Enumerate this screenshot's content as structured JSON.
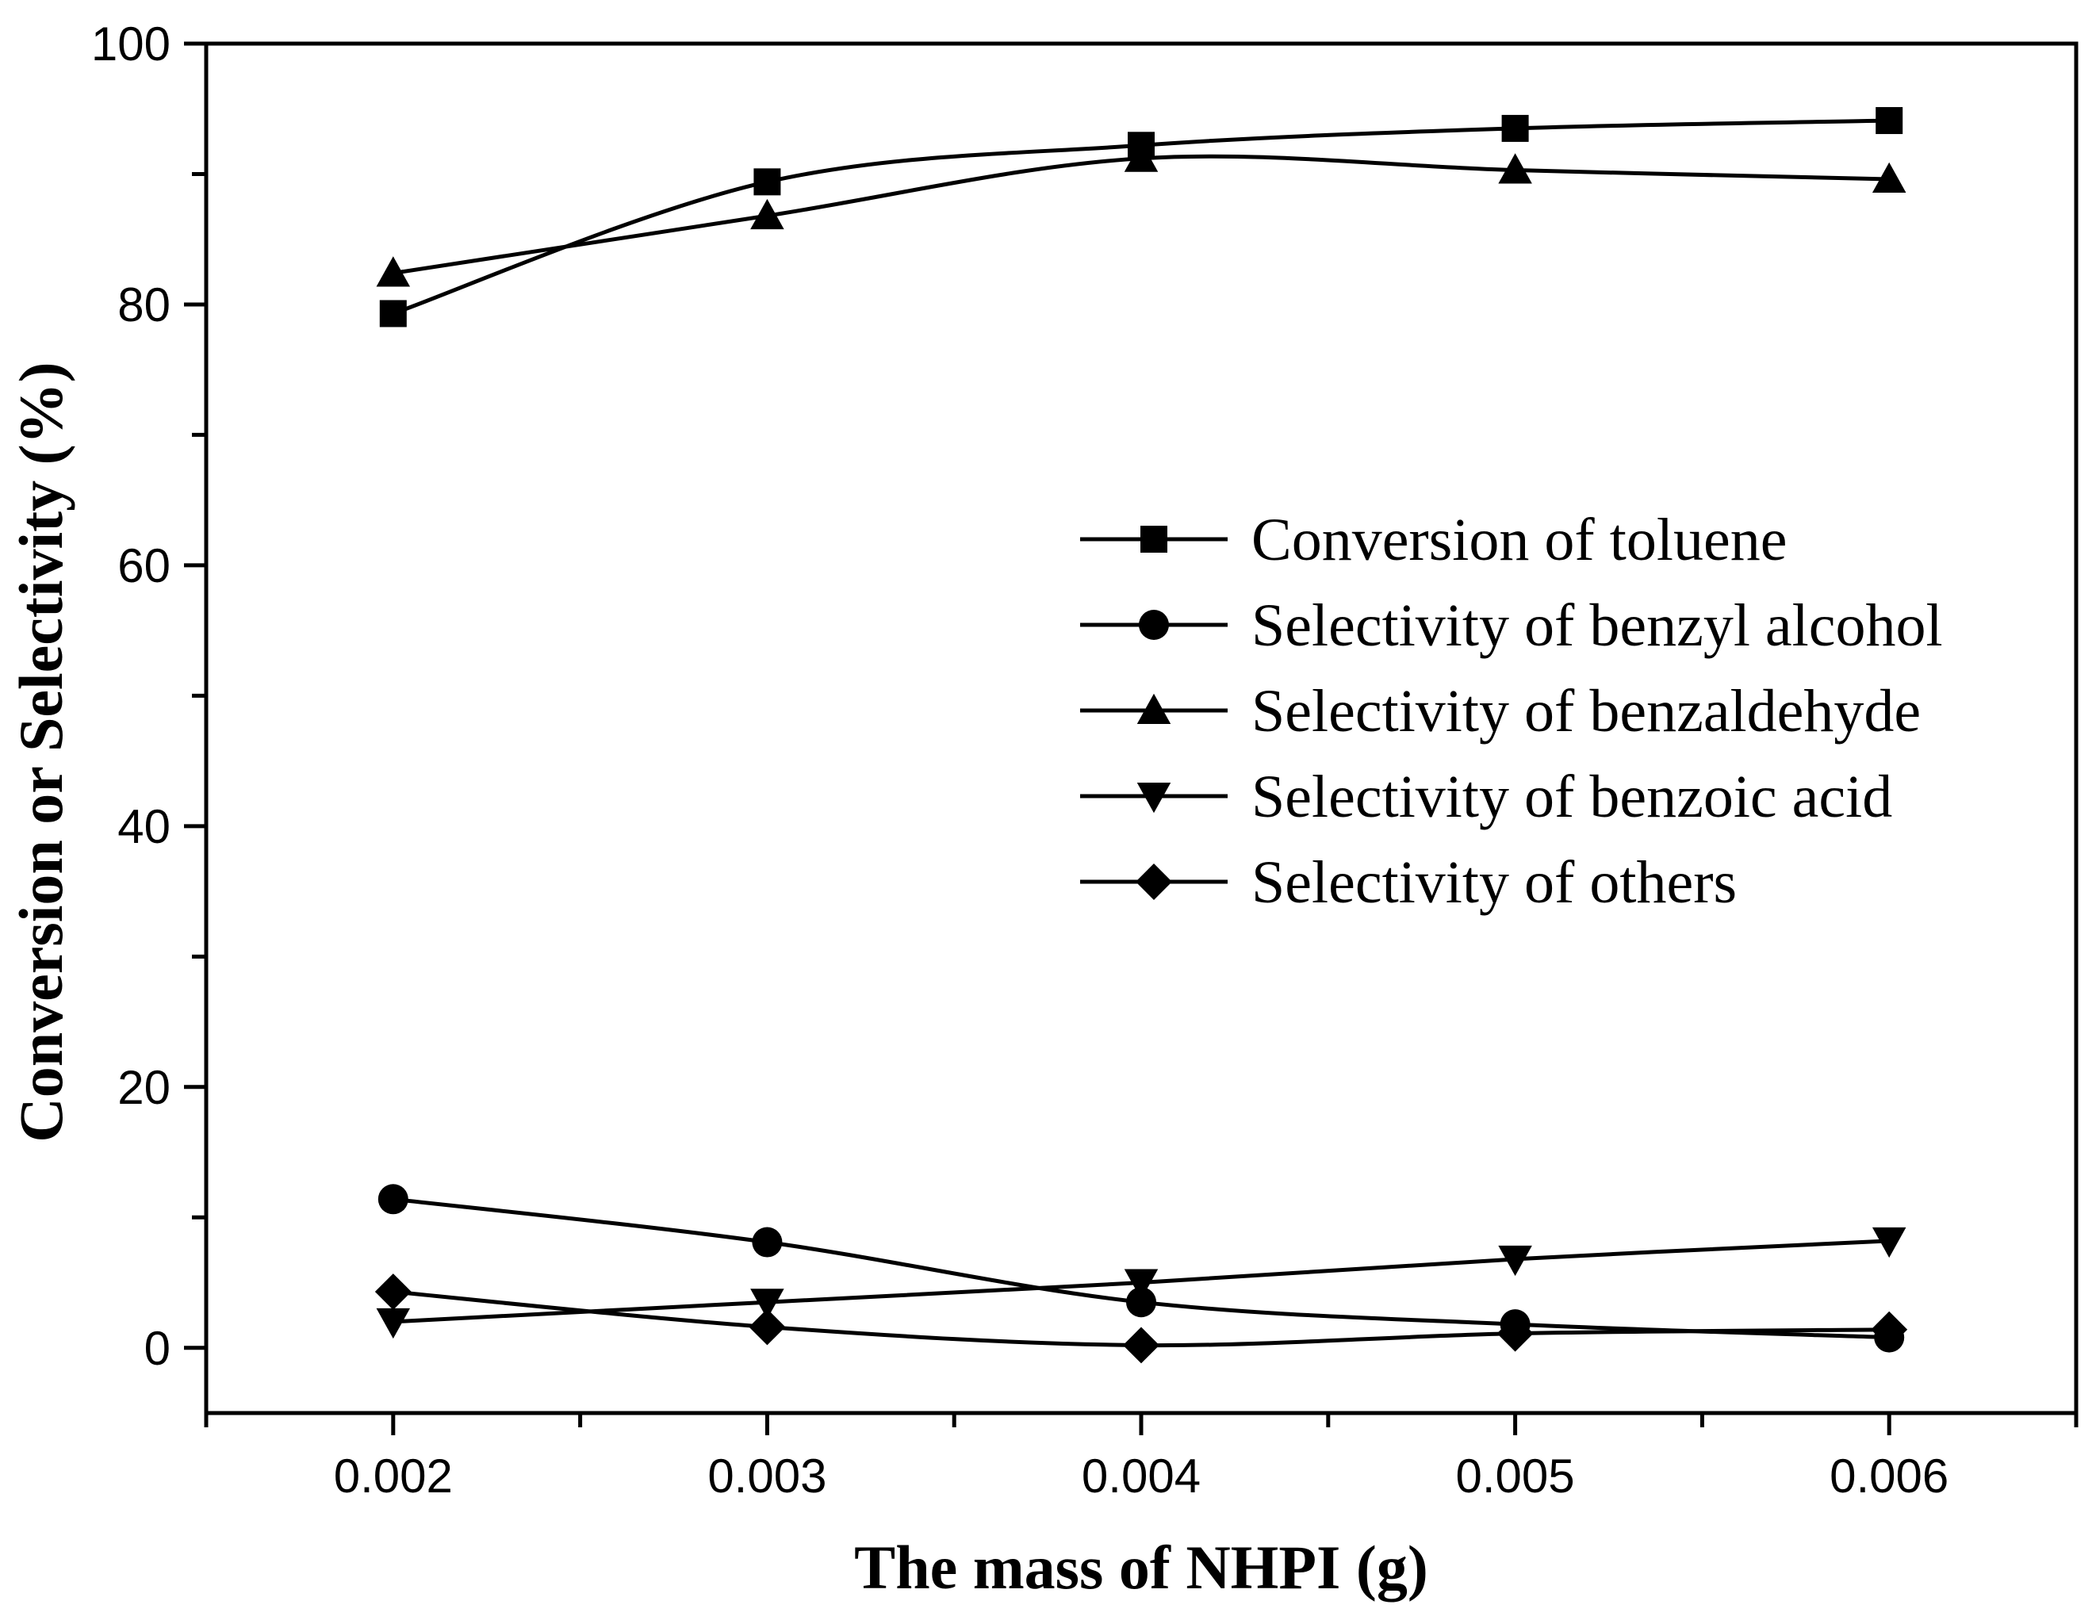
{
  "chart_data": {
    "type": "line",
    "title": "",
    "xlabel": "The mass of NHPI (g)",
    "ylabel": "Conversion or Selectivity (%)",
    "x": [
      0.002,
      0.003,
      0.004,
      0.005,
      0.006
    ],
    "x_tick_labels": [
      "0.002",
      "0.003",
      "0.004",
      "0.005",
      "0.006"
    ],
    "y_tick_labels": [
      "0",
      "20",
      "40",
      "60",
      "80",
      "100"
    ],
    "xlim": [
      0.0015,
      0.0065
    ],
    "ylim": [
      -5,
      100
    ],
    "legend_position": "center-right",
    "series": [
      {
        "name": "Conversion of toluene",
        "marker": "square",
        "values": [
          79.3,
          89.4,
          92.2,
          93.5,
          94.1
        ]
      },
      {
        "name": "Selectivity of benzyl alcohol",
        "marker": "circle",
        "values": [
          11.4,
          8.1,
          3.5,
          1.8,
          0.8
        ]
      },
      {
        "name": "Selectivity of benzaldehyde",
        "marker": "triangle-up",
        "values": [
          82.4,
          86.8,
          91.2,
          90.3,
          89.6
        ]
      },
      {
        "name": "Selectivity of benzoic acid",
        "marker": "triangle-down",
        "values": [
          2.0,
          3.5,
          5.0,
          6.8,
          8.2
        ]
      },
      {
        "name": "Selectivity of others",
        "marker": "diamond",
        "values": [
          4.3,
          1.6,
          0.2,
          1.1,
          1.4
        ]
      }
    ],
    "colors": {
      "ink": "#000000",
      "background": "#ffffff"
    }
  }
}
